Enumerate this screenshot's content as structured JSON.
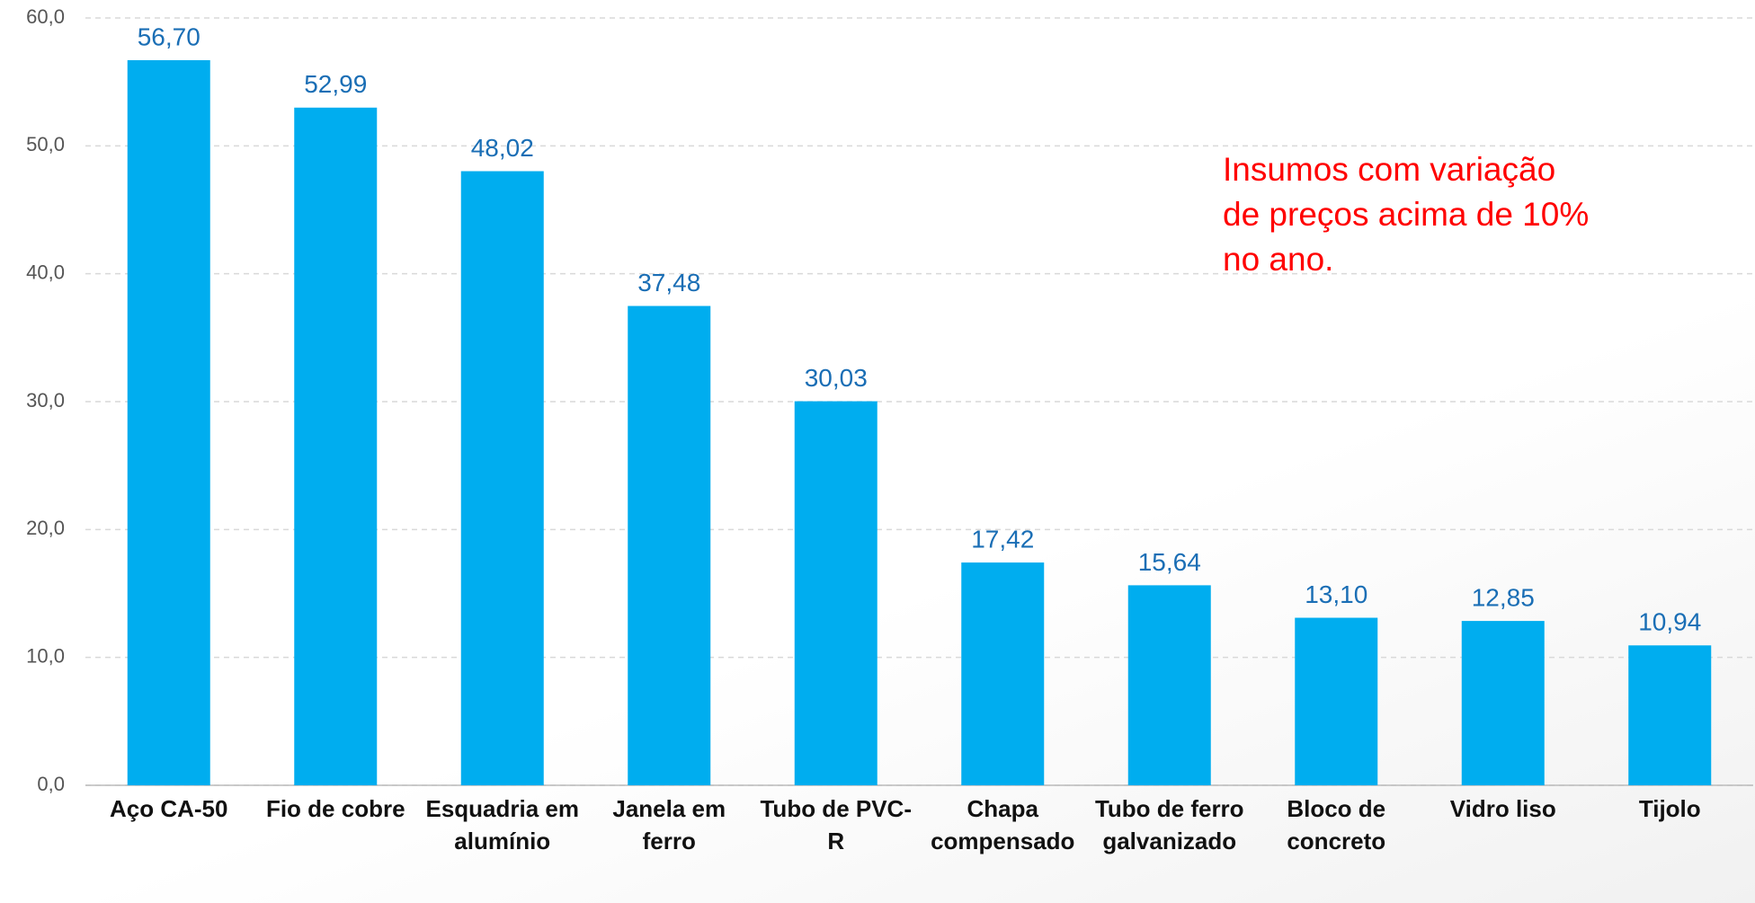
{
  "chart_data": {
    "type": "bar",
    "annotation": "Insumos com variação de preços acima de 10% no ano.",
    "categories": [
      "Aço CA-50",
      "Fio de cobre",
      "Esquadria em alumínio",
      "Janela  em ferro",
      "Tubo de PVC-R",
      "Chapa compensado",
      "Tubo de ferro galvanizado",
      "Bloco de concreto",
      "Vidro liso",
      "Tijolo"
    ],
    "values": [
      56.7,
      52.99,
      48.02,
      37.48,
      30.03,
      17.42,
      15.64,
      13.1,
      12.85,
      10.94
    ],
    "value_labels": [
      "56,70",
      "52,99",
      "48,02",
      "37,48",
      "30,03",
      "17,42",
      "15,64",
      "13,10",
      "12,85",
      "10,94"
    ],
    "color": "#00adef",
    "ylim": [
      0,
      60
    ],
    "yticks": [
      {
        "value": 0,
        "label": "0,0"
      },
      {
        "value": 10,
        "label": "10,0"
      },
      {
        "value": 20,
        "label": "20,0"
      },
      {
        "value": 30,
        "label": "30,0"
      },
      {
        "value": 40,
        "label": "40,0"
      },
      {
        "value": 50,
        "label": "50,0"
      },
      {
        "value": 60,
        "label": "60,0"
      }
    ],
    "grid": true
  }
}
